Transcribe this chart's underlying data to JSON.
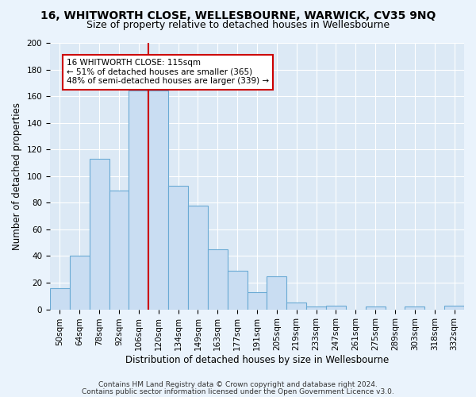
{
  "title": "16, WHITWORTH CLOSE, WELLESBOURNE, WARWICK, CV35 9NQ",
  "subtitle": "Size of property relative to detached houses in Wellesbourne",
  "xlabel": "Distribution of detached houses by size in Wellesbourne",
  "ylabel": "Number of detached properties",
  "bar_labels": [
    "50sqm",
    "64sqm",
    "78sqm",
    "92sqm",
    "106sqm",
    "120sqm",
    "134sqm",
    "149sqm",
    "163sqm",
    "177sqm",
    "191sqm",
    "205sqm",
    "219sqm",
    "233sqm",
    "247sqm",
    "261sqm",
    "275sqm",
    "289sqm",
    "303sqm",
    "318sqm",
    "332sqm"
  ],
  "bar_values": [
    16,
    40,
    113,
    89,
    164,
    164,
    93,
    78,
    45,
    29,
    13,
    25,
    5,
    2,
    3,
    0,
    2,
    0,
    2,
    0,
    3
  ],
  "bar_color": "#c9ddf2",
  "bar_edge_color": "#6aaad4",
  "ylim": [
    0,
    200
  ],
  "yticks": [
    0,
    20,
    40,
    60,
    80,
    100,
    120,
    140,
    160,
    180,
    200
  ],
  "vline_position": 4.5,
  "vline_color": "#cc0000",
  "annotation_line1": "16 WHITWORTH CLOSE: 115sqm",
  "annotation_line2": "← 51% of detached houses are smaller (365)",
  "annotation_line3": "48% of semi-detached houses are larger (339) →",
  "annotation_box_edge": "#cc0000",
  "footer_line1": "Contains HM Land Registry data © Crown copyright and database right 2024.",
  "footer_line2": "Contains public sector information licensed under the Open Government Licence v3.0.",
  "plot_bg_color": "#dce9f5",
  "fig_bg_color": "#eaf3fc",
  "grid_color": "#ffffff",
  "title_fontsize": 10,
  "subtitle_fontsize": 9,
  "axis_label_fontsize": 8.5,
  "tick_fontsize": 7.5,
  "footer_fontsize": 6.5
}
